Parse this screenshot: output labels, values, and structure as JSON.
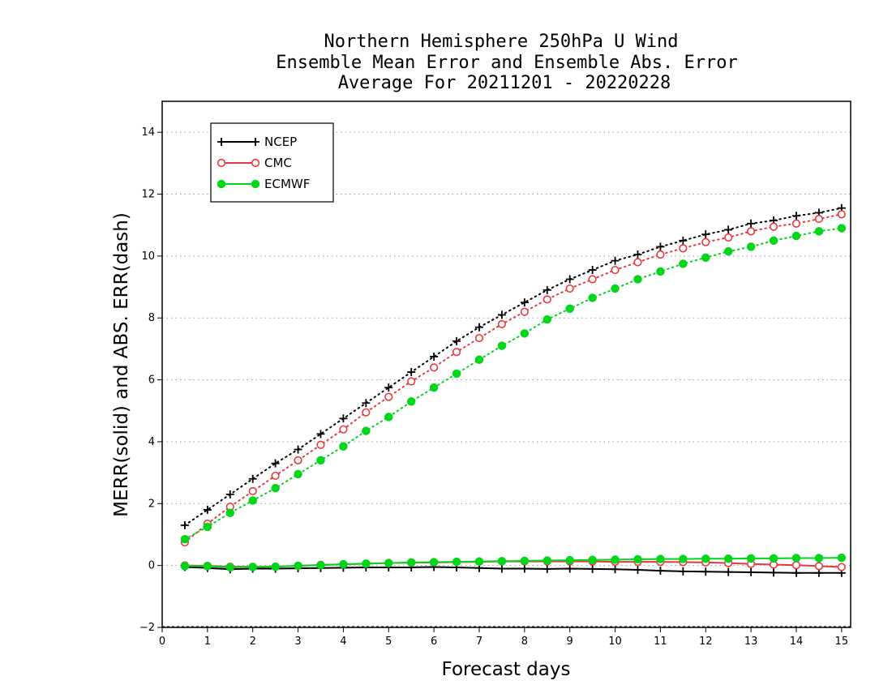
{
  "chart_data": {
    "type": "line",
    "title": [
      "Northern Hemisphere 250hPa U Wind",
      "Ensemble Mean Error and Ensemble Abs. Error",
      "Average For 20211201 - 20220228"
    ],
    "xlabel": "Forecast days",
    "ylabel": "MERR(solid) and ABS. ERR(dash)",
    "xlim": [
      0,
      15.2
    ],
    "ylim": [
      -2,
      15
    ],
    "xticks": [
      "0",
      "1",
      "2",
      "3",
      "4",
      "5",
      "6",
      "7",
      "8",
      "9",
      "10",
      "11",
      "12",
      "13",
      "14",
      "15"
    ],
    "yticks": [
      "−2",
      "0",
      "2",
      "4",
      "6",
      "8",
      "10",
      "12",
      "14"
    ],
    "ytick_values": [
      -2,
      0,
      2,
      4,
      6,
      8,
      10,
      12,
      14
    ],
    "grid": "horizontal dotted",
    "legend_position": "top-left",
    "x": [
      0.5,
      1,
      1.5,
      2,
      2.5,
      3,
      3.5,
      4,
      4.5,
      5,
      5.5,
      6,
      6.5,
      7,
      7.5,
      8,
      8.5,
      9,
      9.5,
      10,
      10.5,
      11,
      11.5,
      12,
      12.5,
      13,
      13.5,
      14,
      14.5,
      15
    ],
    "series": [
      {
        "name": "NCEP",
        "color": "#000000",
        "marker": "plus",
        "merr": [
          -0.05,
          -0.08,
          -0.12,
          -0.1,
          -0.1,
          -0.09,
          -0.08,
          -0.07,
          -0.06,
          -0.06,
          -0.06,
          -0.05,
          -0.06,
          -0.08,
          -0.1,
          -0.1,
          -0.11,
          -0.1,
          -0.11,
          -0.12,
          -0.14,
          -0.17,
          -0.19,
          -0.2,
          -0.21,
          -0.22,
          -0.23,
          -0.24,
          -0.24,
          -0.24
        ],
        "abs_err": [
          1.3,
          1.8,
          2.3,
          2.8,
          3.3,
          3.75,
          4.25,
          4.75,
          5.25,
          5.75,
          6.25,
          6.75,
          7.25,
          7.7,
          8.1,
          8.5,
          8.9,
          9.25,
          9.55,
          9.85,
          10.05,
          10.3,
          10.5,
          10.7,
          10.85,
          11.05,
          11.15,
          11.3,
          11.4,
          11.55
        ]
      },
      {
        "name": "CMC",
        "color": "#e8383d",
        "marker": "open-circle",
        "merr": [
          0.0,
          -0.01,
          -0.04,
          -0.04,
          -0.04,
          -0.01,
          0.02,
          0.04,
          0.06,
          0.08,
          0.09,
          0.1,
          0.11,
          0.12,
          0.13,
          0.13,
          0.13,
          0.13,
          0.13,
          0.12,
          0.12,
          0.12,
          0.11,
          0.1,
          0.08,
          0.05,
          0.03,
          0.01,
          -0.02,
          -0.05
        ],
        "abs_err": [
          0.75,
          1.35,
          1.9,
          2.4,
          2.9,
          3.4,
          3.9,
          4.4,
          4.95,
          5.45,
          5.95,
          6.4,
          6.9,
          7.35,
          7.8,
          8.2,
          8.6,
          8.95,
          9.25,
          9.55,
          9.8,
          10.05,
          10.25,
          10.45,
          10.6,
          10.8,
          10.95,
          11.05,
          11.2,
          11.35
        ]
      },
      {
        "name": "ECMWF",
        "color": "#00d61a",
        "marker": "filled-circle",
        "merr": [
          -0.02,
          -0.02,
          -0.06,
          -0.05,
          -0.04,
          -0.01,
          0.01,
          0.04,
          0.06,
          0.08,
          0.1,
          0.11,
          0.12,
          0.13,
          0.14,
          0.15,
          0.16,
          0.17,
          0.18,
          0.19,
          0.2,
          0.21,
          0.21,
          0.22,
          0.22,
          0.23,
          0.23,
          0.24,
          0.24,
          0.25
        ],
        "abs_err": [
          0.85,
          1.25,
          1.7,
          2.1,
          2.5,
          2.95,
          3.4,
          3.85,
          4.35,
          4.8,
          5.3,
          5.75,
          6.2,
          6.65,
          7.1,
          7.5,
          7.95,
          8.3,
          8.65,
          8.95,
          9.25,
          9.5,
          9.75,
          9.95,
          10.15,
          10.3,
          10.5,
          10.65,
          10.8,
          10.9
        ]
      }
    ]
  }
}
